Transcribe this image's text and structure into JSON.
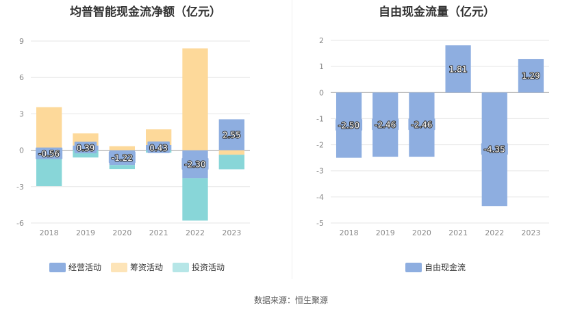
{
  "source": "数据来源：恒生聚源",
  "colors": {
    "operating": "#8eaee0",
    "financing": "#fdd99a",
    "investing": "#88d6d8",
    "free_cash_flow": "#8eaee0",
    "legend_investing": "#b6e6e7",
    "legend_financing": "#fde4b8"
  },
  "chart_data": [
    {
      "type": "bar",
      "stacked": true,
      "title": "均普智能现金流净额（亿元）",
      "categories": [
        "2018",
        "2019",
        "2020",
        "2021",
        "2022",
        "2023"
      ],
      "ylim": [
        -6,
        9
      ],
      "yticks": [
        "9",
        "6",
        "3",
        "0",
        "-3",
        "-6"
      ],
      "grid": true,
      "legend_position": "bottom",
      "series": [
        {
          "name": "经营活动",
          "key": "operating",
          "values": [
            -0.56,
            0.39,
            -1.22,
            0.43,
            -2.3,
            2.55
          ],
          "labels": [
            "-0.56",
            "0.39",
            "-1.22",
            "0.43",
            "-2.30",
            "2.55"
          ]
        },
        {
          "name": "筹资活动",
          "key": "financing",
          "values": [
            3.55,
            1.0,
            0.33,
            1.29,
            8.4,
            -0.37
          ]
        },
        {
          "name": "投资活动",
          "key": "investing",
          "values": [
            -2.4,
            -0.6,
            -0.33,
            -0.2,
            -3.5,
            -1.2
          ]
        }
      ]
    },
    {
      "type": "bar",
      "title": "自由现金流量（亿元）",
      "categories": [
        "2018",
        "2019",
        "2020",
        "2021",
        "2022",
        "2023"
      ],
      "ylim": [
        -5,
        2
      ],
      "yticks": [
        "2",
        "1",
        "0",
        "-1",
        "-2",
        "-3",
        "-4",
        "-5"
      ],
      "grid": true,
      "legend_position": "bottom",
      "series": [
        {
          "name": "自由现金流",
          "key": "free_cash_flow",
          "values": [
            -2.5,
            -2.46,
            -2.46,
            1.81,
            -4.35,
            1.29
          ],
          "labels": [
            "-2.50",
            "-2.46",
            "-2.46",
            "1.81",
            "-4.35",
            "1.29"
          ]
        }
      ]
    }
  ]
}
